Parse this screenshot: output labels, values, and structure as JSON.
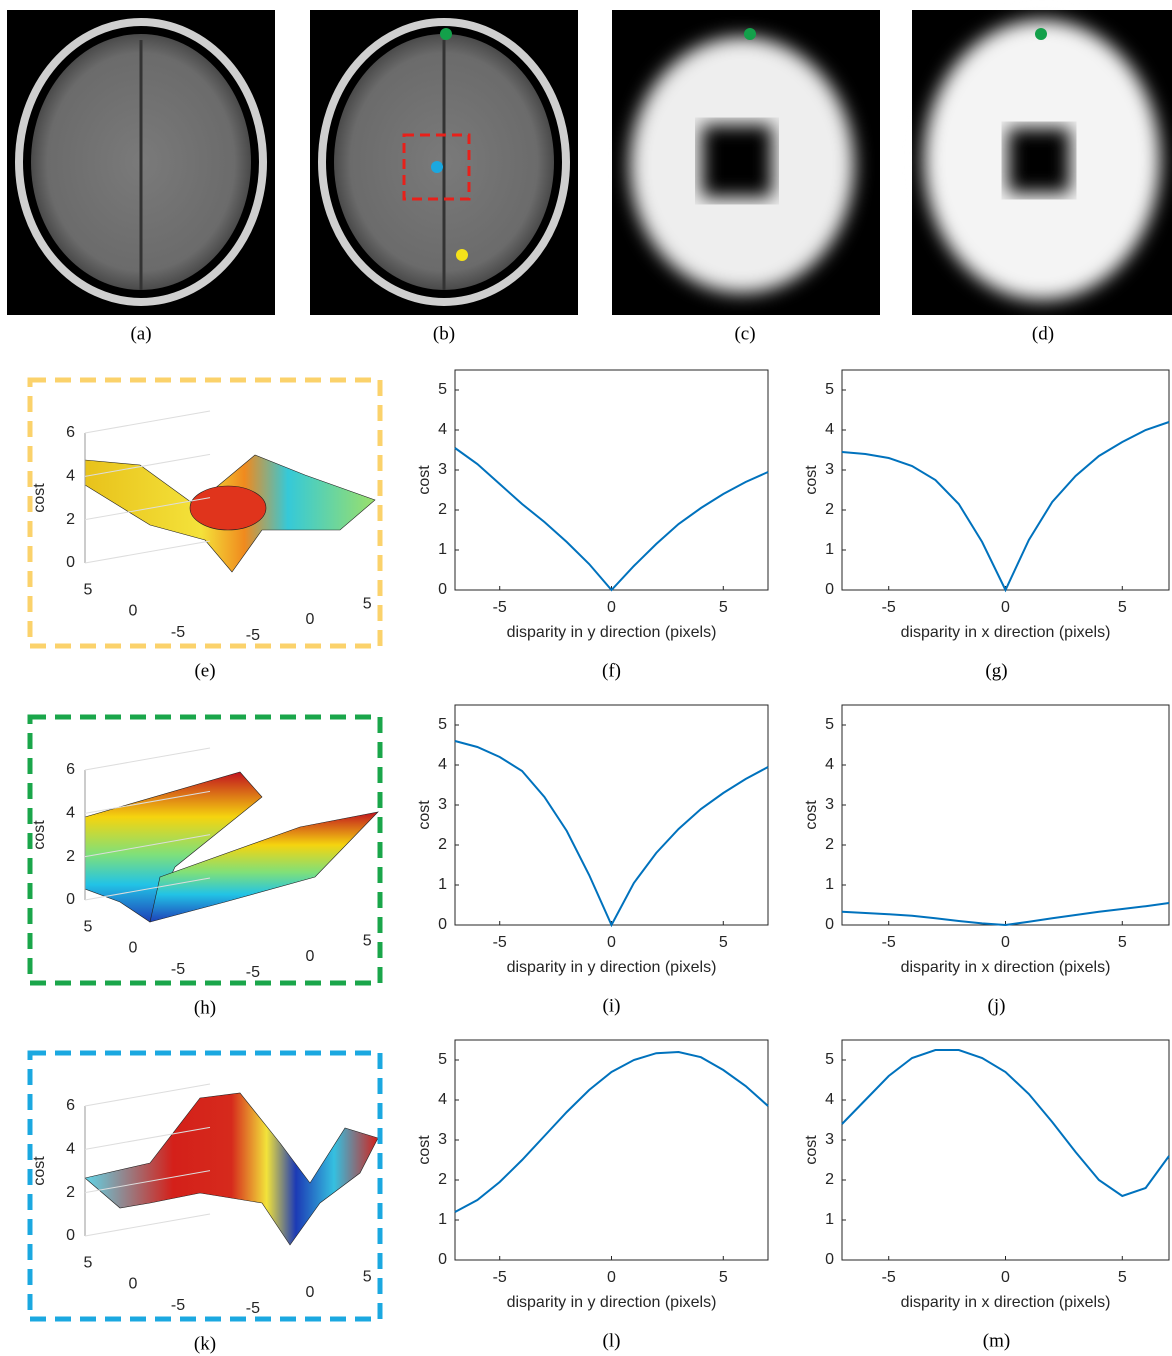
{
  "images": [
    {
      "caption": "(a)"
    },
    {
      "caption": "(b)"
    },
    {
      "caption": "(c)"
    },
    {
      "caption": "(d)"
    }
  ],
  "surfaces": [
    {
      "caption": "(e)",
      "zlabel": "cost",
      "zlim": [
        0,
        6
      ],
      "zticks": [
        0,
        2,
        4,
        6
      ],
      "ylim": [
        -7,
        7
      ],
      "yticks": [
        5,
        0,
        -5
      ],
      "xlim": [
        -7,
        7
      ],
      "xticks": [
        -5,
        0,
        5
      ],
      "border": "#fbd26b"
    },
    {
      "caption": "(h)",
      "zlabel": "cost",
      "zlim": [
        0,
        6
      ],
      "zticks": [
        0,
        2,
        4,
        6
      ],
      "ylim": [
        -7,
        7
      ],
      "yticks": [
        5,
        0,
        -5
      ],
      "xlim": [
        -7,
        7
      ],
      "xticks": [
        -5,
        0,
        5
      ],
      "border": "#1aa64a"
    },
    {
      "caption": "(k)",
      "zlabel": "cost",
      "zlim": [
        0,
        6
      ],
      "zticks": [
        0,
        2,
        4,
        6
      ],
      "ylim": [
        -7,
        7
      ],
      "yticks": [
        5,
        0,
        -5
      ],
      "xlim": [
        -7,
        7
      ],
      "xticks": [
        -5,
        0,
        5
      ],
      "border": "#1ba8e0"
    }
  ],
  "chart_data": [
    {
      "type": "line",
      "caption": "(f)",
      "xlabel": "disparity in y direction (pixels)",
      "ylabel": "cost",
      "x": [
        -7,
        -6,
        -5,
        -4,
        -3,
        -2,
        -1,
        0,
        1,
        2,
        3,
        4,
        5,
        6,
        7
      ],
      "values": [
        3.55,
        3.15,
        2.65,
        2.15,
        1.7,
        1.2,
        0.65,
        0,
        0.6,
        1.15,
        1.65,
        2.05,
        2.4,
        2.7,
        2.95
      ],
      "color": "#0072bd",
      "xlim": [
        -7,
        7
      ],
      "ylim": [
        0,
        5.5
      ],
      "xticks": [
        -5,
        0,
        5
      ],
      "yticks": [
        0,
        1,
        2,
        3,
        4,
        5
      ]
    },
    {
      "type": "line",
      "caption": "(g)",
      "xlabel": "disparity in x direction (pixels)",
      "ylabel": "cost",
      "x": [
        -7,
        -6,
        -5,
        -4,
        -3,
        -2,
        -1,
        0,
        1,
        2,
        3,
        4,
        5,
        6,
        7
      ],
      "values": [
        3.45,
        3.4,
        3.3,
        3.1,
        2.75,
        2.15,
        1.2,
        0,
        1.25,
        2.2,
        2.85,
        3.35,
        3.7,
        4.0,
        4.2
      ],
      "color": "#0072bd",
      "xlim": [
        -7,
        7
      ],
      "ylim": [
        0,
        5.5
      ],
      "xticks": [
        -5,
        0,
        5
      ],
      "yticks": [
        0,
        1,
        2,
        3,
        4,
        5
      ]
    },
    {
      "type": "line",
      "caption": "(i)",
      "xlabel": "disparity in y direction (pixels)",
      "ylabel": "cost",
      "x": [
        -7,
        -6,
        -5,
        -4,
        -3,
        -2,
        -1,
        0,
        1,
        2,
        3,
        4,
        5,
        6,
        7
      ],
      "values": [
        4.6,
        4.45,
        4.2,
        3.85,
        3.2,
        2.35,
        1.25,
        0,
        1.05,
        1.8,
        2.4,
        2.9,
        3.3,
        3.65,
        3.95
      ],
      "color": "#0072bd",
      "xlim": [
        -7,
        7
      ],
      "ylim": [
        0,
        5.5
      ],
      "xticks": [
        -5,
        0,
        5
      ],
      "yticks": [
        0,
        1,
        2,
        3,
        4,
        5
      ]
    },
    {
      "type": "line",
      "caption": "(j)",
      "xlabel": "disparity in x direction (pixels)",
      "ylabel": "cost",
      "x": [
        -7,
        -6,
        -5,
        -4,
        -3,
        -2,
        -1,
        0,
        1,
        2,
        3,
        4,
        5,
        6,
        7
      ],
      "values": [
        0.33,
        0.3,
        0.27,
        0.23,
        0.17,
        0.1,
        0.04,
        0,
        0.08,
        0.17,
        0.25,
        0.33,
        0.4,
        0.47,
        0.55
      ],
      "color": "#0072bd",
      "xlim": [
        -7,
        7
      ],
      "ylim": [
        0,
        5.5
      ],
      "xticks": [
        -5,
        0,
        5
      ],
      "yticks": [
        0,
        1,
        2,
        3,
        4,
        5
      ]
    },
    {
      "type": "line",
      "caption": "(l)",
      "xlabel": "disparity in y direction (pixels)",
      "ylabel": "cost",
      "x": [
        -7,
        -6,
        -5,
        -4,
        -3,
        -2,
        -1,
        0,
        1,
        2,
        3,
        4,
        5,
        6,
        7
      ],
      "values": [
        1.2,
        1.5,
        1.95,
        2.5,
        3.1,
        3.7,
        4.25,
        4.7,
        5.0,
        5.17,
        5.2,
        5.07,
        4.75,
        4.35,
        3.85
      ],
      "color": "#0072bd",
      "xlim": [
        -7,
        7
      ],
      "ylim": [
        0,
        5.5
      ],
      "xticks": [
        -5,
        0,
        5
      ],
      "yticks": [
        0,
        1,
        2,
        3,
        4,
        5
      ]
    },
    {
      "type": "line",
      "caption": "(m)",
      "xlabel": "disparity in x direction (pixels)",
      "ylabel": "cost",
      "x": [
        -7,
        -6,
        -5,
        -4,
        -3,
        -2,
        -1,
        0,
        1,
        2,
        3,
        4,
        5,
        6,
        7
      ],
      "values": [
        3.4,
        4.0,
        4.6,
        5.05,
        5.25,
        5.25,
        5.05,
        4.7,
        4.15,
        3.45,
        2.7,
        2.0,
        1.6,
        1.8,
        2.6
      ],
      "color": "#0072bd",
      "xlim": [
        -7,
        7
      ],
      "ylim": [
        0,
        5.5
      ],
      "xticks": [
        -5,
        0,
        5
      ],
      "yticks": [
        0,
        1,
        2,
        3,
        4,
        5
      ]
    }
  ]
}
